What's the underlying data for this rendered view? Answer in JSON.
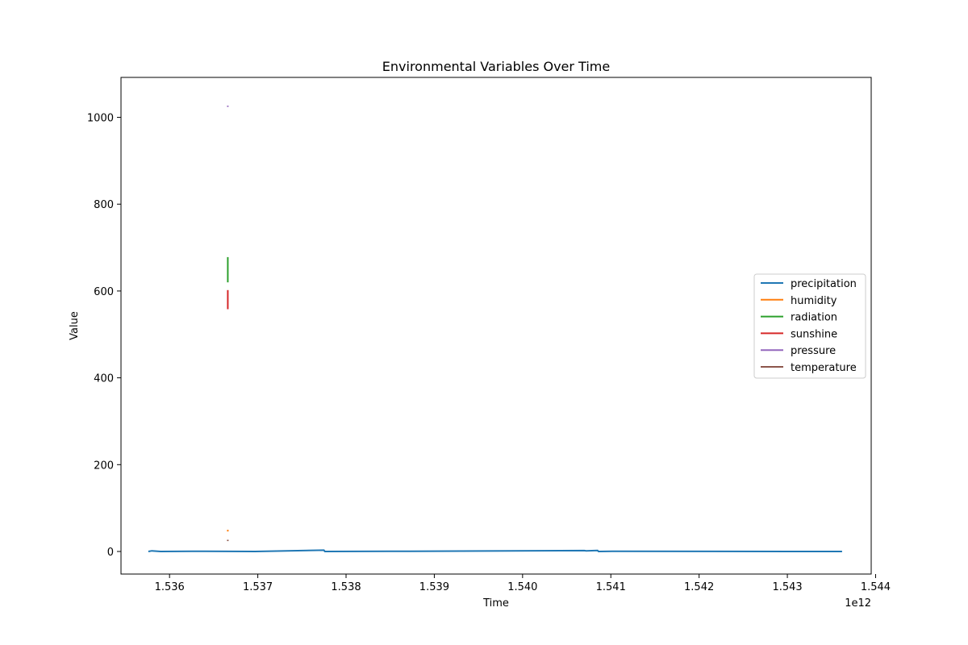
{
  "chart_data": {
    "type": "line",
    "title": "Environmental Variables Over Time",
    "xlabel": "Time",
    "ylabel": "Value",
    "x_offset_label": "1e12",
    "xlim": [
      1.53545,
      1.54395
    ],
    "ylim": [
      -52,
      1092
    ],
    "xticks": [
      1.536,
      1.537,
      1.538,
      1.539,
      1.54,
      1.541,
      1.542,
      1.543,
      1.544
    ],
    "xtick_labels": [
      "1.536",
      "1.537",
      "1.538",
      "1.539",
      "1.540",
      "1.541",
      "1.542",
      "1.543",
      "1.544"
    ],
    "yticks": [
      0,
      200,
      400,
      600,
      800,
      1000
    ],
    "ytick_labels": [
      "0",
      "200",
      "400",
      "600",
      "800",
      "1000"
    ],
    "grid": false,
    "legend_position": "center-right",
    "series": [
      {
        "name": "precipitation",
        "color": "#1f77b4",
        "x": [
          1.53576,
          1.5358,
          1.5359,
          1.53626,
          1.53697,
          1.53775,
          1.53776,
          1.5385,
          1.5407,
          1.54072,
          1.54085,
          1.54086,
          1.54102,
          1.54302,
          1.54362
        ],
        "y": [
          0,
          1.5,
          0,
          0.6,
          0,
          3,
          0,
          0.4,
          2,
          1.5,
          2.5,
          0,
          0.3,
          0,
          0
        ]
      },
      {
        "name": "humidity",
        "color": "#ff7f0e",
        "x": [
          1.53666,
          1.53666
        ],
        "y": [
          46,
          50
        ]
      },
      {
        "name": "radiation",
        "color": "#2ca02c",
        "x": [
          1.53666,
          1.53666
        ],
        "y": [
          620,
          678
        ]
      },
      {
        "name": "sunshine",
        "color": "#d62728",
        "x": [
          1.53666,
          1.53666
        ],
        "y": [
          558,
          602
        ]
      },
      {
        "name": "pressure",
        "color": "#9467bd",
        "x": [
          1.53666,
          1.53666
        ],
        "y": [
          1024,
          1027
        ]
      },
      {
        "name": "temperature",
        "color": "#8c564b",
        "x": [
          1.53666,
          1.53666
        ],
        "y": [
          24,
          27
        ]
      }
    ]
  }
}
